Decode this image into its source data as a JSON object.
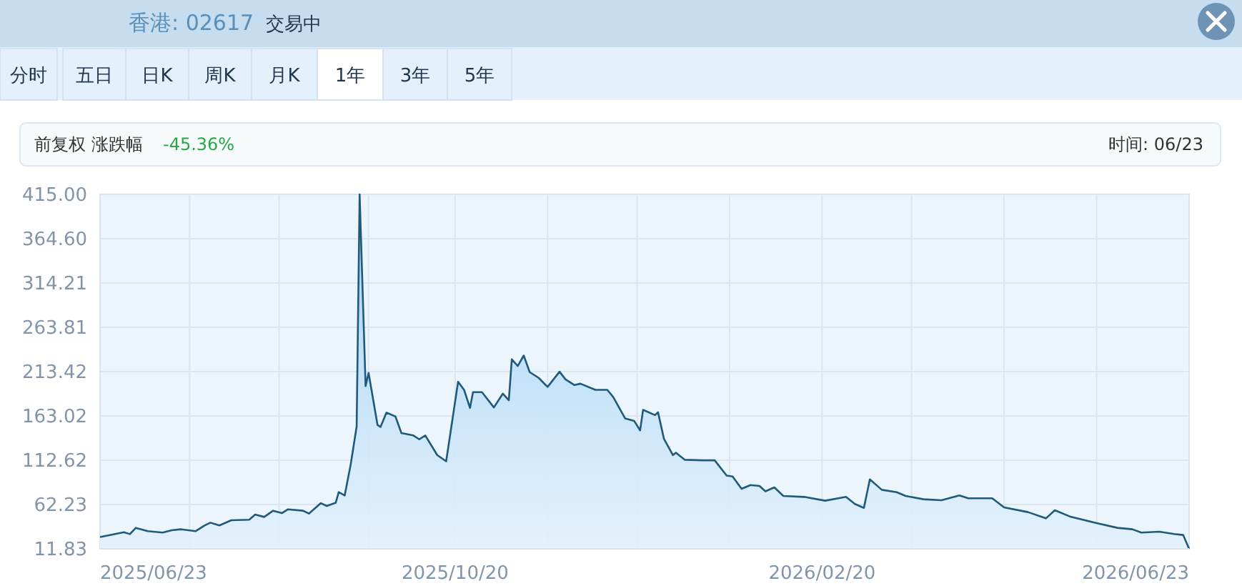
{
  "chart_data": {
    "type": "area",
    "annotations": [
      "香港: 02617",
      "交易中",
      "分时",
      "五日",
      "日K",
      "周K",
      "月K",
      "1年",
      "3年",
      "5年",
      "前复权 涨跌幅",
      "-45.36%",
      "时间: 06/23"
    ],
    "xlim": [
      "2025-06-23",
      "2026-06-23"
    ],
    "xticks": [
      {
        "value": "2025-06-23",
        "label": "2025/06/23"
      },
      {
        "value": "2025-07-23",
        "label": null
      },
      {
        "value": "2025-08-22",
        "label": null
      },
      {
        "value": "2025-09-21",
        "label": null
      },
      {
        "value": "2025-10-20",
        "label": "2025/10/20"
      },
      {
        "value": "2025-11-20",
        "label": null
      },
      {
        "value": "2025-12-20",
        "label": null
      },
      {
        "value": "2026-01-20",
        "label": null
      },
      {
        "value": "2026-02-20",
        "label": "2026/02/20"
      },
      {
        "value": "2026-03-22",
        "label": null
      },
      {
        "value": "2026-04-22",
        "label": null
      },
      {
        "value": "2026-05-23",
        "label": null
      },
      {
        "value": "2026-06-23",
        "label": "2026/06/23"
      }
    ],
    "ylim": [
      11.83,
      415
    ],
    "yticks": [
      11.83,
      62.23,
      {
        "value": 112.62,
        "label": "112.62"
      },
      {
        "value": 163.02,
        "label": "163.02"
      },
      {
        "value": 213.42,
        "label": "213.42"
      },
      263.81,
      314.21,
      {
        "value": 364.6,
        "label": "364.60"
      },
      {
        "value": 415,
        "label": "415.00"
      }
    ],
    "grid": true,
    "marker": "none",
    "line_style": "solid",
    "series": [
      {
        "color": "#1f5a7a",
        "x": [
          "2025-06-23",
          "2025-07-01",
          "2025-07-03",
          "2025-07-05",
          "2025-07-09",
          "2025-07-14",
          "2025-07-17",
          "2025-07-20",
          "2025-07-25",
          "2025-07-28",
          "2025-07-30",
          "2025-08-02",
          "2025-08-06",
          "2025-08-12",
          "2025-08-14",
          "2025-08-17",
          "2025-08-20",
          "2025-08-23",
          "2025-08-25",
          "2025-08-30",
          "2025-09-01",
          "2025-09-05",
          "2025-09-07",
          "2025-09-10",
          "2025-09-11",
          "2025-09-13",
          "2025-09-15",
          "2025-09-17",
          "2025-09-18",
          "2025-09-20",
          "2025-09-21",
          "2025-09-24",
          "2025-09-25",
          "2025-09-27",
          "2025-09-30",
          "2025-10-02",
          "2025-10-06",
          "2025-10-08",
          "2025-10-10",
          "2025-10-14",
          "2025-10-17",
          "2025-10-21",
          "2025-10-23",
          "2025-10-25",
          "2025-10-26",
          "2025-10-29",
          "2025-11-02",
          "2025-11-05",
          "2025-11-07",
          "2025-11-08",
          "2025-11-10",
          "2025-11-12",
          "2025-11-14",
          "2025-11-17",
          "2025-11-20",
          "2025-11-24",
          "2025-11-26",
          "2025-11-29",
          "2025-12-01",
          "2025-12-06",
          "2025-12-10",
          "2025-12-12",
          "2025-12-16",
          "2025-12-19",
          "2025-12-21",
          "2025-12-22",
          "2025-12-26",
          "2025-12-27",
          "2025-12-29",
          "2026-01-01",
          "2026-01-02",
          "2026-01-05",
          "2026-01-11",
          "2026-01-15",
          "2026-01-19",
          "2026-01-21",
          "2026-01-24",
          "2026-01-27",
          "2026-01-30",
          "2026-02-01",
          "2026-02-04",
          "2026-02-07",
          "2026-02-14",
          "2026-02-21",
          "2026-02-28",
          "2026-03-03",
          "2026-03-06",
          "2026-03-08",
          "2026-03-12",
          "2026-03-17",
          "2026-03-20",
          "2026-03-26",
          "2026-04-01",
          "2026-04-07",
          "2026-04-10",
          "2026-04-18",
          "2026-04-22",
          "2026-04-30",
          "2026-05-06",
          "2026-05-09",
          "2026-05-14",
          "2026-05-23",
          "2026-05-30",
          "2026-06-04",
          "2026-06-07",
          "2026-06-13",
          "2026-06-18",
          "2026-06-21",
          "2026-06-23"
        ],
        "values": [
          25.3,
          30.8,
          28.6,
          35.7,
          31.9,
          30.3,
          33,
          34.1,
          31.9,
          38.4,
          41.6,
          38.4,
          44.3,
          44.9,
          50.8,
          48.1,
          55.2,
          52.5,
          56.8,
          55.2,
          51.9,
          63.8,
          60.6,
          64.3,
          76.3,
          72.5,
          107.7,
          151,
          415,
          197,
          212,
          152.7,
          150.5,
          166.8,
          162.4,
          143.5,
          140.8,
          136.4,
          140.8,
          118.5,
          111.4,
          201.9,
          192.7,
          172.1,
          190,
          190,
          172.7,
          188.4,
          180.8,
          227.4,
          219.8,
          231.7,
          212.8,
          206.3,
          196,
          213.3,
          204.6,
          198.1,
          199.7,
          192.7,
          192.7,
          184.5,
          160.1,
          157.4,
          146.6,
          169.9,
          163.9,
          167.2,
          136.9,
          118.5,
          121.2,
          113.1,
          112.5,
          112.5,
          95.2,
          94.1,
          80.1,
          84.4,
          83.3,
          77.3,
          81.7,
          72,
          70.9,
          66.6,
          70.9,
          62.8,
          58.4,
          90.9,
          79,
          76.3,
          72,
          68.2,
          67.1,
          72.5,
          69.3,
          69.3,
          59,
          53.6,
          46.5,
          55.7,
          48.7,
          41.1,
          35.7,
          34.1,
          30.3,
          31.4,
          28.7,
          27.6,
          11.83
        ]
      }
    ]
  }
}
